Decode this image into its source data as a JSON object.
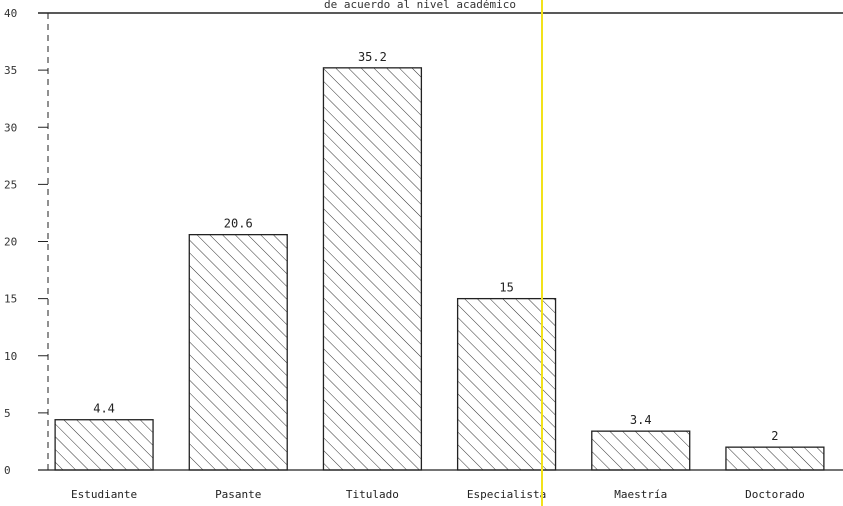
{
  "chart_data": {
    "type": "bar",
    "title": "de acuerdo al nivel académico",
    "xlabel": "",
    "ylabel": "",
    "categories": [
      "Estudiante",
      "Pasante",
      "Titulado",
      "Especialista",
      "Maestría",
      "Doctorado"
    ],
    "values": [
      4.4,
      20.6,
      35.2,
      15,
      3.4,
      2
    ],
    "data_labels": [
      "4.4",
      "20.6",
      "35.2",
      "15",
      "3.4",
      "2"
    ],
    "ylim": [
      0,
      40
    ],
    "yticks": [
      0,
      5,
      10,
      15,
      20,
      25,
      30,
      35,
      40
    ],
    "ytick_labels": [
      "0",
      "5",
      "10",
      "15",
      "20",
      "25",
      "30",
      "35",
      "40"
    ],
    "grid": false,
    "bar_fill": "hatched",
    "colors": {
      "bar_stroke": "#222222",
      "hatch": "#333333",
      "axis": "#222222",
      "marker_line": "#f2e21a"
    }
  }
}
